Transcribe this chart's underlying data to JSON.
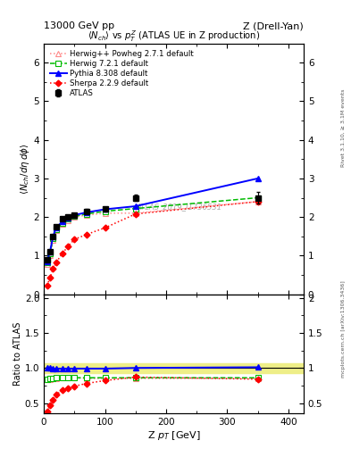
{
  "title_left": "13000 GeV pp",
  "title_right": "Z (Drell-Yan)",
  "plot_title": "<N_{ch}> vs p^{Z}_{T} (ATLAS UE in Z production)",
  "xlabel": "Z p_{T} [GeV]",
  "ylabel_main": "<N_{ch}/d\\eta d\\phi>",
  "ylabel_ratio": "Ratio to ATLAS",
  "watermark": "ATLAS_2019_I1736531",
  "right_label_top": "Rivet 3.1.10, ≥ 3.1M events",
  "right_label_bot": "mcplots.cern.ch [arXiv:1306.3436]",
  "atlas_x": [
    5,
    10,
    15,
    20,
    30,
    40,
    50,
    70,
    100,
    150,
    350
  ],
  "atlas_y": [
    0.9,
    1.1,
    1.5,
    1.75,
    1.95,
    2.0,
    2.05,
    2.15,
    2.2,
    2.5,
    2.5
  ],
  "atlas_yerr": [
    0.03,
    0.04,
    0.05,
    0.05,
    0.05,
    0.05,
    0.05,
    0.06,
    0.06,
    0.08,
    0.15
  ],
  "herwig_powheg_x": [
    5,
    10,
    15,
    20,
    30,
    40,
    50,
    70,
    100,
    150,
    350
  ],
  "herwig_powheg_y": [
    0.78,
    1.0,
    1.4,
    1.65,
    1.82,
    1.92,
    2.0,
    2.05,
    2.1,
    2.1,
    2.4
  ],
  "herwig_powheg_color": "#ff8888",
  "herwig_powheg_label": "Herwig++ Powheg 2.7.1 default",
  "herwig721_x": [
    5,
    10,
    15,
    20,
    30,
    40,
    50,
    70,
    100,
    150,
    350
  ],
  "herwig721_y": [
    0.82,
    1.05,
    1.45,
    1.68,
    1.85,
    1.95,
    2.02,
    2.08,
    2.15,
    2.22,
    2.5
  ],
  "herwig721_color": "#00bb00",
  "herwig721_label": "Herwig 7.2.1 default",
  "pythia_x": [
    5,
    10,
    15,
    20,
    30,
    40,
    50,
    70,
    100,
    150,
    350
  ],
  "pythia_y": [
    0.85,
    1.1,
    1.5,
    1.72,
    1.88,
    1.98,
    2.05,
    2.12,
    2.2,
    2.28,
    3.0
  ],
  "pythia_color": "#0000ff",
  "pythia_label": "Pythia 8.308 default",
  "sherpa_x": [
    5,
    10,
    15,
    20,
    30,
    40,
    50,
    70,
    100,
    150,
    350
  ],
  "sherpa_y": [
    0.22,
    0.42,
    0.65,
    0.82,
    1.05,
    1.25,
    1.42,
    1.55,
    1.72,
    2.08,
    2.4
  ],
  "sherpa_color": "#ff0000",
  "sherpa_label": "Sherpa 2.2.9 default",
  "ratio_hp_y": [
    0.84,
    0.84,
    0.85,
    0.85,
    0.86,
    0.86,
    0.86,
    0.85,
    0.85,
    0.85,
    0.85
  ],
  "ratio_h7_y": [
    0.84,
    0.85,
    0.85,
    0.86,
    0.86,
    0.86,
    0.86,
    0.86,
    0.86,
    0.86,
    0.86
  ],
  "ratio_py_y": [
    1.0,
    1.0,
    0.99,
    0.99,
    0.99,
    0.99,
    0.99,
    0.99,
    0.99,
    1.0,
    1.01
  ],
  "ratio_sh_y": [
    0.38,
    0.47,
    0.55,
    0.62,
    0.68,
    0.71,
    0.74,
    0.78,
    0.82,
    0.87,
    0.84
  ],
  "xlim": [
    0,
    425
  ],
  "ylim_main": [
    0,
    6.5
  ],
  "ylim_ratio": [
    0.35,
    2.05
  ],
  "atlas_band_color": "#eeee88",
  "background_color": "#ffffff"
}
